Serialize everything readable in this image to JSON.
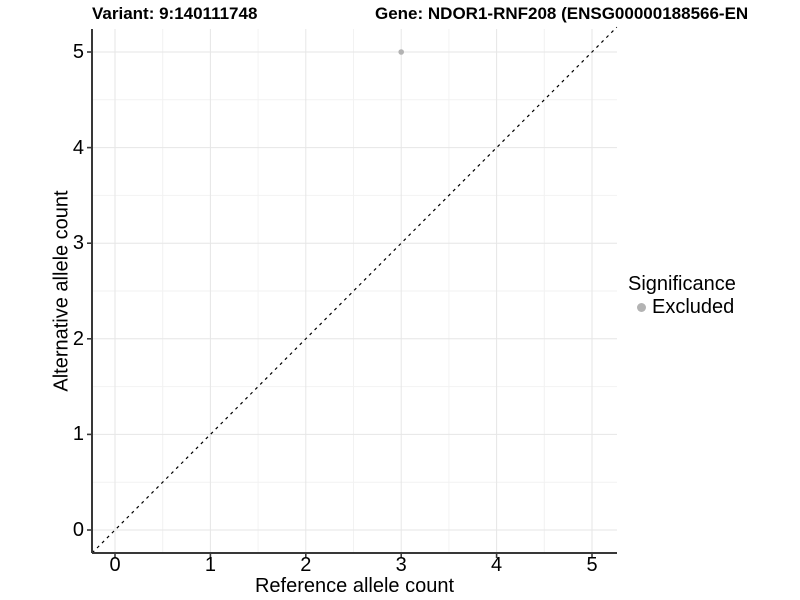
{
  "titles": {
    "variant": "Variant: 9:140111748",
    "gene": "Gene: NDOR1-RNF208 (ENSG00000188566-EN"
  },
  "legend": {
    "title": "Significance",
    "items": [
      {
        "label": "Excluded",
        "color": "#b3b3b3"
      }
    ]
  },
  "colors": {
    "grid_major": "#e6e6e6",
    "grid_minor": "#f2f2f2",
    "axis_line": "#383838",
    "tick_mark": "#383838",
    "reference_line": "#000000",
    "point": "#b3b3b3",
    "text": "#000000"
  },
  "chart_data": {
    "type": "scatter",
    "title": "Variant: 9:140111748 / Gene: NDOR1-RNF208 (ENSG00000188566-EN",
    "xlabel": "Reference allele count",
    "ylabel": "Alternative allele count",
    "x_ticks": [
      0,
      1,
      2,
      3,
      4,
      5
    ],
    "y_ticks": [
      0,
      1,
      2,
      3,
      4,
      5
    ],
    "xlim": [
      -0.24,
      5.26
    ],
    "ylim": [
      -0.24,
      5.26
    ],
    "grid": {
      "major": true,
      "minor": true
    },
    "legend_position": "right",
    "series": [
      {
        "name": "Excluded",
        "color": "#b3b3b3",
        "points": [
          {
            "x": 3,
            "y": 5
          }
        ]
      }
    ],
    "reference_line": {
      "style": "dashed",
      "equation": "y = x",
      "slope": 1,
      "intercept": 0
    }
  }
}
